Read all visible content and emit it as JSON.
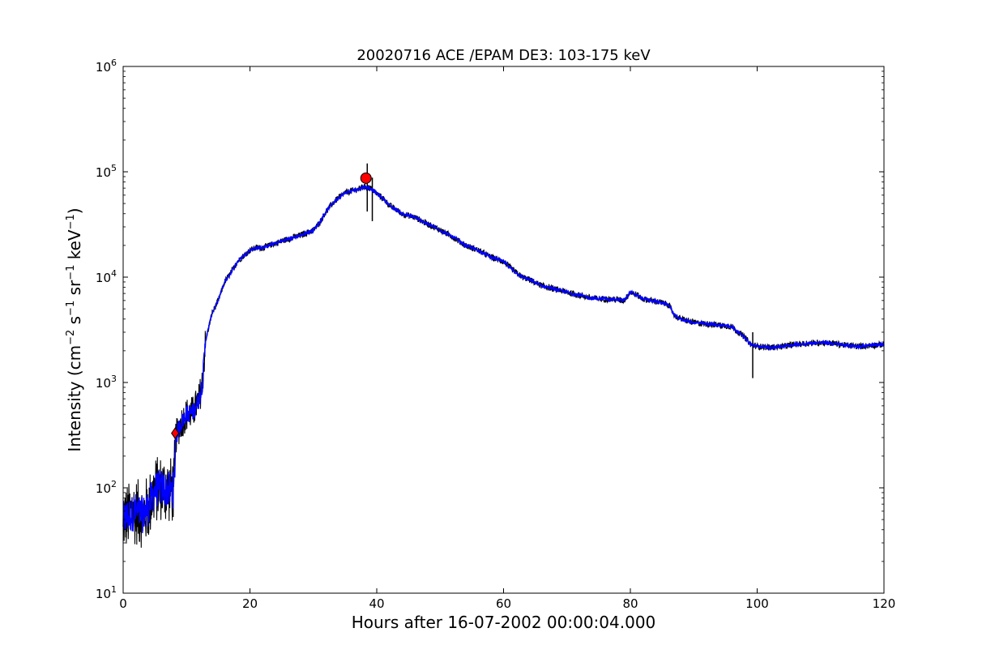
{
  "chart_data": {
    "type": "line",
    "title": "20020716 ACE /EPAM DE3: 103-175 keV",
    "xlabel": "Hours after 16-07-2002 00:00:04.000",
    "ylabel_parts": {
      "main": "Intensity (cm",
      "exp1": "−2",
      "s": " s",
      "exp2": "−1",
      "sr": " sr",
      "exp3": "−1",
      "kev": " keV",
      "exp4": "−1",
      "close": ")"
    },
    "xlim": [
      0,
      120
    ],
    "ylim": [
      10,
      1000000
    ],
    "yscale": "log",
    "grid": false,
    "xticks": [
      0,
      20,
      40,
      60,
      80,
      100,
      120
    ],
    "xtick_labels": [
      "0",
      "20",
      "40",
      "60",
      "80",
      "100",
      "120"
    ],
    "yticks": [
      10,
      100,
      1000,
      10000,
      100000,
      1000000
    ],
    "ytick_labels": [
      {
        "base": "10",
        "exp": "1"
      },
      {
        "base": "10",
        "exp": "2"
      },
      {
        "base": "10",
        "exp": "3"
      },
      {
        "base": "10",
        "exp": "4"
      },
      {
        "base": "10",
        "exp": "5"
      },
      {
        "base": "10",
        "exp": "6"
      }
    ],
    "series": [
      {
        "color": "#0000ff",
        "x": [
          0,
          1,
          2,
          3,
          4,
          5,
          6,
          7,
          8,
          8.3,
          9,
          10,
          11,
          12,
          12.5,
          13,
          14,
          15,
          16,
          17,
          18,
          19,
          20,
          21,
          22,
          24,
          26,
          28,
          30,
          31,
          32,
          33,
          34,
          35,
          36,
          37,
          38,
          39,
          40,
          41,
          42,
          43,
          44,
          46,
          48,
          50,
          52,
          54,
          56,
          58,
          60,
          62,
          63,
          64,
          66,
          68,
          70,
          72,
          74,
          76,
          78,
          79,
          80,
          81,
          82,
          84,
          86,
          87,
          88,
          90,
          92,
          94,
          96,
          97,
          98,
          99,
          100,
          102,
          104,
          106,
          108,
          110,
          112,
          114,
          116,
          118,
          120
        ],
        "y": [
          50,
          55,
          60,
          55,
          65,
          95,
          100,
          95,
          95,
          300,
          400,
          500,
          520,
          700,
          1000,
          2500,
          4500,
          6000,
          9000,
          11000,
          14000,
          16000,
          18000,
          19000,
          19000,
          21000,
          23000,
          25000,
          28000,
          33000,
          42000,
          50000,
          57000,
          63000,
          66000,
          68000,
          72000,
          70000,
          62000,
          56000,
          48000,
          44000,
          40000,
          37000,
          32000,
          28000,
          24000,
          20000,
          18000,
          15500,
          14000,
          11000,
          10000,
          9500,
          8300,
          7700,
          7200,
          6700,
          6300,
          6200,
          6100,
          6000,
          7200,
          6800,
          6200,
          5900,
          5500,
          4300,
          4000,
          3700,
          3600,
          3500,
          3400,
          3000,
          2700,
          2300,
          2200,
          2150,
          2200,
          2300,
          2350,
          2400,
          2350,
          2250,
          2200,
          2250,
          2300
        ]
      }
    ],
    "markers": [
      {
        "shape": "diamond",
        "x": 8.2,
        "y": 330,
        "color": "#ff0000"
      },
      {
        "shape": "circle",
        "x": 38.3,
        "y": 87000,
        "color": "#ff0000"
      }
    ]
  }
}
